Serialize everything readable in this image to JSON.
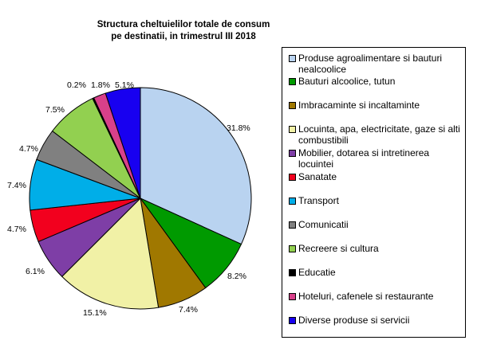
{
  "chart_data": {
    "type": "pie",
    "title": "Structura cheltuielilor totale de consum pe destinatii, in trimestrul III 2018",
    "title_lines": [
      "Structura cheltuielilor totale de consum",
      "pe destinatii, in trimestrul III 2018"
    ],
    "legend_position": "right",
    "categories": [
      "Produse agroalimentare si bauturi nealcoolice",
      "Bauturi alcoolice, tutun",
      "Imbracaminte si incaltaminte",
      "Locuinta, apa, electricitate, gaze si alti combustibili",
      "Mobilier, dotarea si intretinerea locuintei",
      "Sanatate",
      "Transport",
      "Comunicatii",
      "Recreere si cultura",
      "Educatie",
      "Hoteluri, cafenele si restaurante",
      "Diverse produse si servicii"
    ],
    "values": [
      31.8,
      8.2,
      7.4,
      15.1,
      6.1,
      4.7,
      7.4,
      4.7,
      7.5,
      0.2,
      1.8,
      5.1
    ],
    "labels": [
      "31.8%",
      "8.2%",
      "7.4%",
      "15.1%",
      "6.1%",
      "4.7%",
      "7.4%",
      "4.7%",
      "7.5%",
      "0.2%",
      "1.8%",
      "5.1%"
    ],
    "colors": [
      "#b9d3f0",
      "#009a00",
      "#a07800",
      "#f1f1a6",
      "#7e3ea6",
      "#f2001e",
      "#00aee8",
      "#808080",
      "#92d050",
      "#000000",
      "#d8408a",
      "#1800f0"
    ]
  }
}
